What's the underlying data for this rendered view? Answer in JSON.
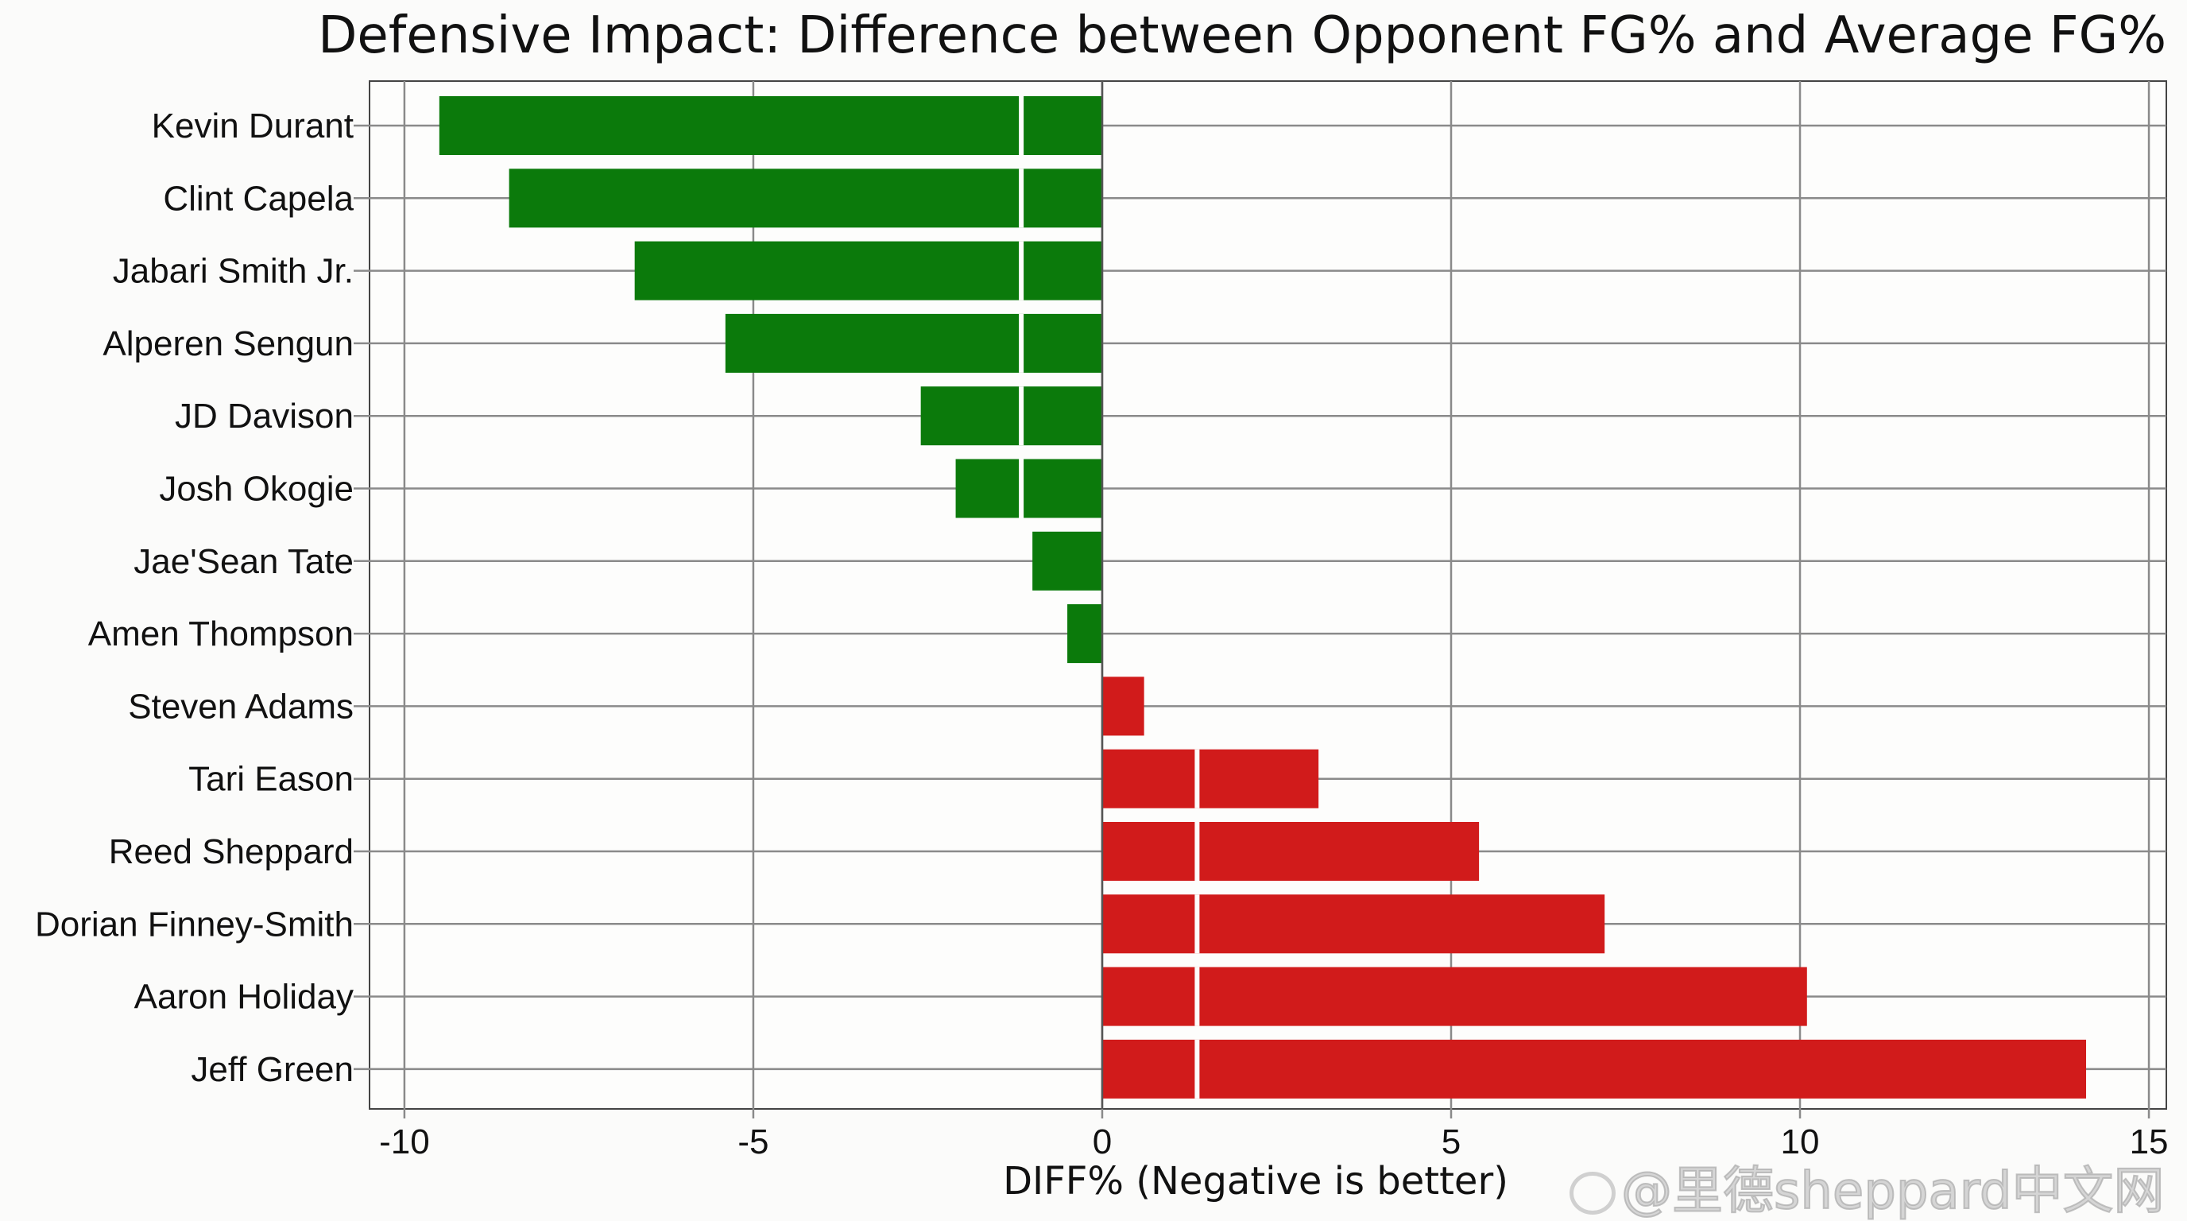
{
  "chart_data": {
    "type": "bar",
    "orientation": "horizontal",
    "title": "Defensive Impact: Difference between Opponent FG% and Average FG%",
    "xlabel": "DIFF% (Negative is better)",
    "ylabel": "",
    "categories": [
      "Kevin Durant",
      "Clint Capela",
      "Jabari Smith Jr.",
      "Alperen Sengun",
      "JD Davison",
      "Josh Okogie",
      "Jae'Sean Tate",
      "Amen Thompson",
      "Steven Adams",
      "Tari Eason",
      "Reed Sheppard",
      "Dorian Finney-Smith",
      "Aaron Holiday",
      "Jeff Green"
    ],
    "values": [
      -9.5,
      -8.5,
      -6.7,
      -5.4,
      -2.6,
      -2.1,
      -1.0,
      -0.5,
      0.6,
      3.1,
      5.4,
      7.2,
      10.1,
      14.1
    ],
    "xlim": [
      -10.5,
      15.25
    ],
    "xticks": [
      -10,
      -5,
      0,
      5,
      10,
      15
    ],
    "xtick_labels": [
      "-10",
      "-5",
      "0",
      "5",
      "10",
      "15"
    ],
    "grid": true,
    "colors": {
      "negative": "#0b7a0b",
      "positive": "#d11b1b"
    }
  },
  "watermark": "@里德sheppard中文网"
}
